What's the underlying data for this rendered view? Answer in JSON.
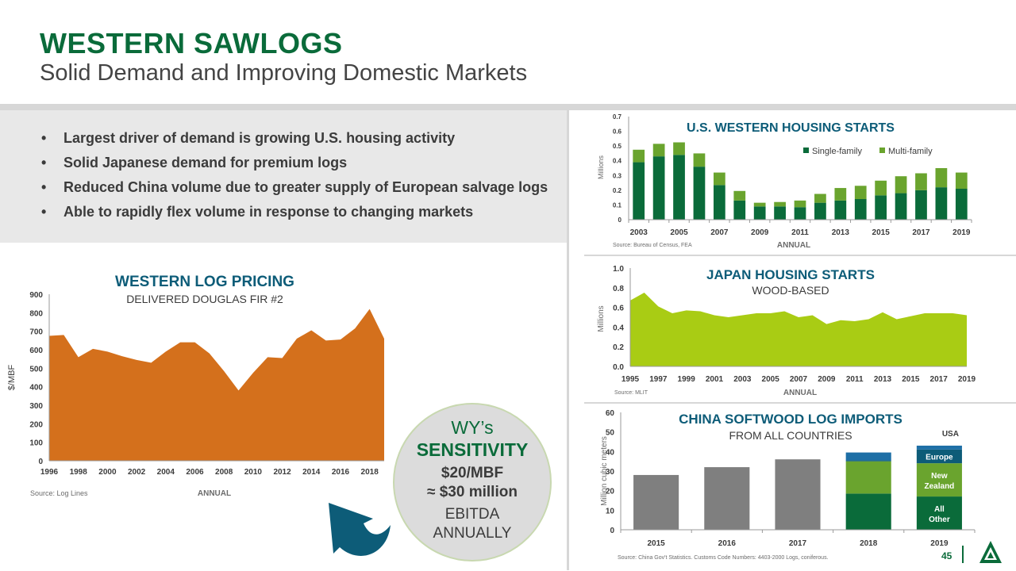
{
  "header": {
    "title": "WESTERN SAWLOGS",
    "subtitle": "Solid Demand and Improving Domestic Markets"
  },
  "bullets": [
    "Largest driver of demand is growing U.S. housing activity",
    "Solid Japanese demand for premium logs",
    "Reduced China volume due to greater supply of European salvage logs",
    "Able to rapidly flex volume in response to changing markets"
  ],
  "sensitivity": {
    "line1": "WY’s",
    "line2": "SENSITIVITY",
    "line3": "$20/MBF",
    "line4": "≈ $30 million",
    "line5": "EBITDA",
    "line6": "ANNUALLY"
  },
  "page_number": "45",
  "colors": {
    "brand_green": "#0a6b3a",
    "title_blue": "#0d5c78",
    "pricing_orange": "#d4701c",
    "lime": "#a9cc14",
    "single_family": "#0a6b3a",
    "multi_family": "#6aa42e",
    "gray_bar": "#7f7f7f",
    "europe_blue": "#1e6fa6"
  },
  "chart_data": [
    {
      "id": "pricing",
      "type": "area",
      "title": "WESTERN LOG PRICING",
      "subtitle": "DELIVERED DOUGLAS FIR #2",
      "ylabel": "$/MBF",
      "xlabel": "ANNUAL",
      "source": "Source: Log Lines",
      "ylim": [
        0,
        900
      ],
      "yticks": [
        0,
        100,
        200,
        300,
        400,
        500,
        600,
        700,
        800,
        900
      ],
      "xlim": [
        1996,
        2019
      ],
      "xticks": [
        1996,
        1998,
        2000,
        2002,
        2004,
        2006,
        2008,
        2010,
        2012,
        2014,
        2016,
        2018
      ],
      "x": [
        1996,
        1997,
        1998,
        1999,
        2000,
        2001,
        2002,
        2003,
        2004,
        2005,
        2006,
        2007,
        2008,
        2009,
        2010,
        2011,
        2012,
        2013,
        2014,
        2015,
        2016,
        2017,
        2018,
        2019
      ],
      "values": [
        675,
        680,
        560,
        605,
        590,
        565,
        545,
        530,
        590,
        640,
        640,
        580,
        485,
        380,
        475,
        560,
        555,
        660,
        705,
        650,
        655,
        715,
        820,
        660
      ],
      "color": "#d4701c"
    },
    {
      "id": "us_housing",
      "type": "bar",
      "stacked": true,
      "title": "U.S. WESTERN HOUSING STARTS",
      "ylabel": "Millions",
      "xlabel": "ANNUAL",
      "source": "Source: Bureau of Census, FEA",
      "ylim": [
        0,
        0.7
      ],
      "yticks": [
        "0",
        "0.1",
        "0.2",
        "0.3",
        "0.4",
        "0.5",
        "0.6",
        "0.7"
      ],
      "categories": [
        "2003",
        "2004",
        "2005",
        "2006",
        "2007",
        "2008",
        "2009",
        "2010",
        "2011",
        "2012",
        "2013",
        "2014",
        "2015",
        "2016",
        "2017",
        "2018",
        "2019"
      ],
      "xtick_labels": [
        "2003",
        "2005",
        "2007",
        "2009",
        "2011",
        "2013",
        "2015",
        "2017",
        "2019"
      ],
      "legend": "top-right",
      "series": [
        {
          "name": "Single-family",
          "color": "#0a6b3a",
          "values": [
            0.39,
            0.43,
            0.44,
            0.36,
            0.235,
            0.13,
            0.09,
            0.09,
            0.085,
            0.115,
            0.13,
            0.14,
            0.165,
            0.18,
            0.2,
            0.22,
            0.21
          ]
        },
        {
          "name": "Multi-family",
          "color": "#6aa42e",
          "values": [
            0.085,
            0.085,
            0.085,
            0.09,
            0.085,
            0.065,
            0.025,
            0.03,
            0.045,
            0.06,
            0.085,
            0.09,
            0.1,
            0.115,
            0.115,
            0.13,
            0.11
          ]
        }
      ]
    },
    {
      "id": "japan_housing",
      "type": "area",
      "title": "JAPAN HOUSING STARTS",
      "subtitle": "WOOD-BASED",
      "ylabel": "Millions",
      "xlabel": "ANNUAL",
      "source": "Source: MLIT",
      "ylim": [
        0,
        1.0
      ],
      "yticks": [
        "0.0",
        "0.2",
        "0.4",
        "0.6",
        "0.8",
        "1.0"
      ],
      "xlim": [
        1995,
        2019
      ],
      "xticks": [
        1995,
        1997,
        1999,
        2001,
        2003,
        2005,
        2007,
        2009,
        2011,
        2013,
        2015,
        2017,
        2019
      ],
      "x": [
        1995,
        1996,
        1997,
        1998,
        1999,
        2000,
        2001,
        2002,
        2003,
        2004,
        2005,
        2006,
        2007,
        2008,
        2009,
        2010,
        2011,
        2012,
        2013,
        2014,
        2015,
        2016,
        2017,
        2018,
        2019
      ],
      "values": [
        0.67,
        0.75,
        0.61,
        0.54,
        0.57,
        0.56,
        0.52,
        0.5,
        0.52,
        0.54,
        0.54,
        0.56,
        0.5,
        0.52,
        0.43,
        0.47,
        0.46,
        0.48,
        0.55,
        0.48,
        0.51,
        0.54,
        0.54,
        0.54,
        0.52
      ],
      "color": "#a9cc14"
    },
    {
      "id": "china_imports",
      "type": "bar",
      "stacked": true,
      "title": "CHINA SOFTWOOD LOG IMPORTS",
      "subtitle": "FROM ALL COUNTRIES",
      "ylabel": "Million cubic meters",
      "source": "Source: China Gov't Statistics. Customs Code Numbers: 4403-2000 Logs, coniferous.",
      "ylim": [
        0,
        60
      ],
      "yticks": [
        0,
        10,
        20,
        30,
        40,
        50,
        60
      ],
      "categories": [
        "2015",
        "2016",
        "2017",
        "2018",
        "2019"
      ],
      "series": [
        {
          "name": "All Other",
          "color": "#0a6b3a",
          "values": [
            null,
            null,
            null,
            18.5,
            17
          ]
        },
        {
          "name": "New Zealand",
          "color": "#6aa42e",
          "values": [
            null,
            null,
            null,
            16.5,
            17
          ]
        },
        {
          "name": "Europe",
          "color": "#0d5c78",
          "values": [
            null,
            null,
            null,
            0.5,
            7
          ]
        },
        {
          "name": "USA",
          "color": "#1e6fa6",
          "values": [
            null,
            null,
            null,
            4,
            2
          ]
        },
        {
          "name": "",
          "color": "#7f7f7f",
          "values": [
            28,
            32,
            36,
            null,
            null
          ]
        }
      ],
      "segment_labels": [
        "All Other",
        "New Zealand",
        "Europe",
        "USA"
      ]
    }
  ]
}
